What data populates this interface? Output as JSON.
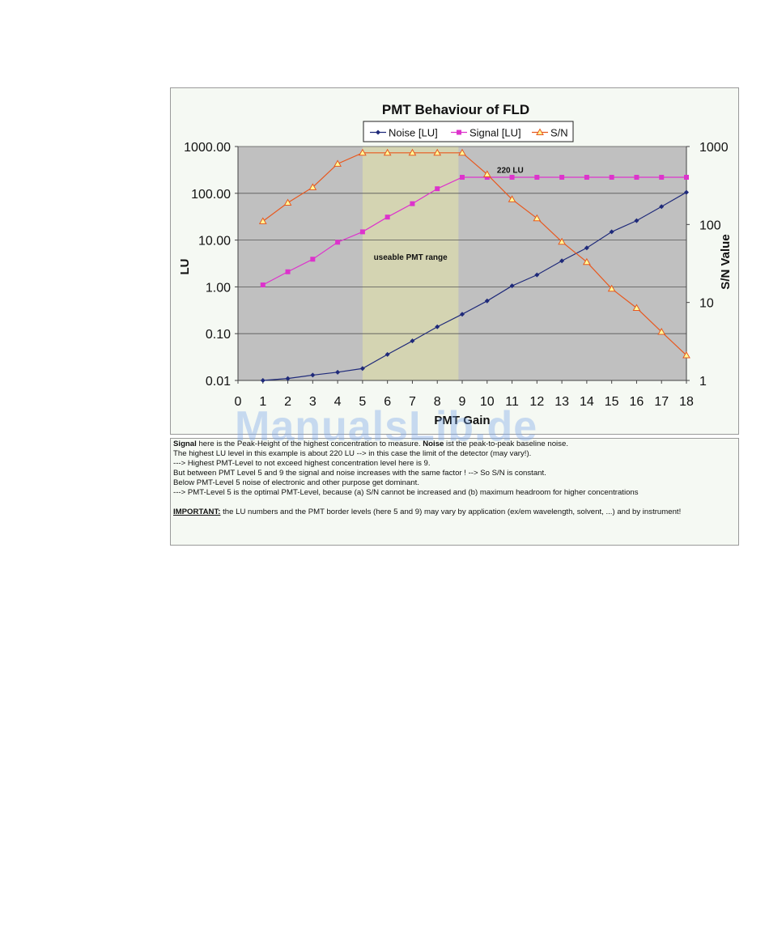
{
  "chart_data": {
    "type": "line",
    "title": "PMT Behaviour  of FLD",
    "xlabel": "PMT Gain",
    "ylabel": "LU",
    "y2label": "S/N Value",
    "x": [
      1,
      2,
      3,
      4,
      5,
      6,
      7,
      8,
      9,
      10,
      11,
      12,
      13,
      14,
      15,
      16,
      17,
      18
    ],
    "xlim": [
      0,
      18
    ],
    "x_ticks": [
      "0",
      "1",
      "2",
      "3",
      "4",
      "5",
      "6",
      "7",
      "8",
      "9",
      "10",
      "11",
      "12",
      "13",
      "14",
      "15",
      "16",
      "17",
      "18"
    ],
    "y_scale": "log",
    "ylim": [
      0.01,
      1000
    ],
    "y_ticks": [
      "1000.00",
      "100.00",
      "10.00",
      "1.00",
      "0.10",
      "0.01"
    ],
    "y2_scale": "log",
    "y2lim": [
      1,
      1000
    ],
    "y2_ticks": [
      "1000",
      "100",
      "10",
      "1"
    ],
    "grid": true,
    "legend_position": "top-center",
    "series": [
      {
        "name": "Noise [LU]",
        "axis": "left",
        "marker": "diamond",
        "color": "#1f2a7a",
        "values": [
          0.01,
          0.011,
          0.013,
          0.015,
          0.018,
          0.036,
          0.07,
          0.14,
          0.26,
          0.5,
          1.05,
          1.8,
          3.6,
          6.8,
          15,
          26,
          52,
          105
        ]
      },
      {
        "name": "Signal [LU]",
        "axis": "left",
        "marker": "square",
        "color": "#dd33cc",
        "values": [
          1.1,
          2.1,
          3.9,
          9,
          15,
          31,
          60,
          125,
          220,
          220,
          220,
          220,
          220,
          220,
          220,
          220,
          220,
          220
        ]
      },
      {
        "name": "S/N",
        "axis": "right",
        "marker": "triangle",
        "color": "#e8581e",
        "values": [
          110,
          190,
          300,
          600,
          830,
          830,
          830,
          830,
          830,
          440,
          210,
          120,
          60,
          33,
          15,
          8.5,
          4.2,
          2.1
        ]
      }
    ],
    "highlight": {
      "from": 5,
      "to": 8.85,
      "label": "useable PMT range",
      "color": "#d4d4b2"
    },
    "annotation": {
      "text": "220 LU",
      "x": 12,
      "y": 320
    }
  },
  "notes": {
    "line1_a": "Signal",
    "line1_b": " here is the Peak-Height of the highest concentration to measure. ",
    "line1_c": "Noise",
    "line1_d": " ist the peak-to-peak baseline noise.",
    "line2": "The highest LU level in this example is about 220 LU --> in this case the limit of the detector (may vary!).",
    "line3": " ---> Highest PMT-Level to not exceed highest concentration level here is 9.",
    "line4": "But between PMT Level 5 and 9 the signal and noise increases with the same factor ! --> So S/N is constant.",
    "line5": "Below PMT-Level 5 noise of electronic and other purpose get dominant.",
    "line6": " ---> PMT-Level 5 is the optimal PMT-Level, because (a) S/N cannot be increased and (b) maximum headroom for higher concentrations",
    "important_label": "IMPORTANT:",
    "important_text": " the LU numbers and the PMT border levels (here 5 and 9) may vary by application (ex/em wavelength, solvent, ...) and by instrument!"
  },
  "watermark": "ManualsLib.de"
}
